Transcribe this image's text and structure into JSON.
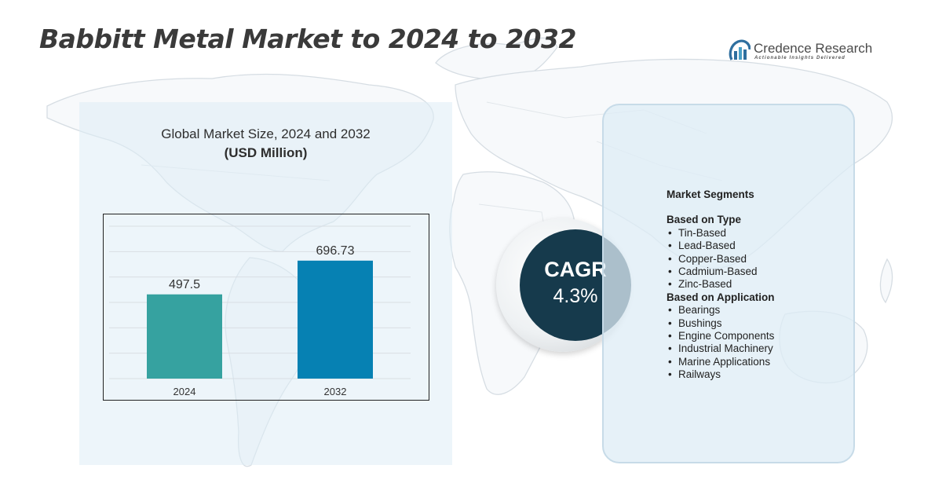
{
  "title": "Babbitt Metal Market to 2024 to 2032",
  "brand": {
    "name": "Credence Research",
    "tagline": "Actionable Insights Delivered",
    "icon": "bar-chart-logo-icon",
    "colors": {
      "primary": "#2f6f9f",
      "accent": "#49a0c7"
    }
  },
  "chart_panel": {
    "heading": "Global Market Size, 2024 and 2032",
    "subheading": "(USD Million)"
  },
  "chart_data": {
    "type": "bar",
    "categories": [
      "2024",
      "2032"
    ],
    "values": [
      497.5,
      696.73
    ],
    "value_labels": [
      "497.5",
      "696.73"
    ],
    "colors": [
      "#36a2a0",
      "#0681b3"
    ],
    "ylim": [
      0,
      900
    ],
    "grid": true,
    "xlabel": "",
    "ylabel": ""
  },
  "cagr": {
    "label": "CAGR",
    "value": "4.3%",
    "color": "#163a4c"
  },
  "segments": {
    "title": "Market Segments",
    "groups": [
      {
        "title": "Based on Type",
        "items": [
          "Tin-Based",
          "Lead-Based",
          "Copper-Based",
          "Cadmium-Based",
          "Zinc-Based"
        ]
      },
      {
        "title": "Based on Application",
        "items": [
          "Bearings",
          "Bushings",
          "Engine Components",
          "Industrial Machinery",
          "Marine Applications",
          "Railways"
        ]
      }
    ]
  }
}
